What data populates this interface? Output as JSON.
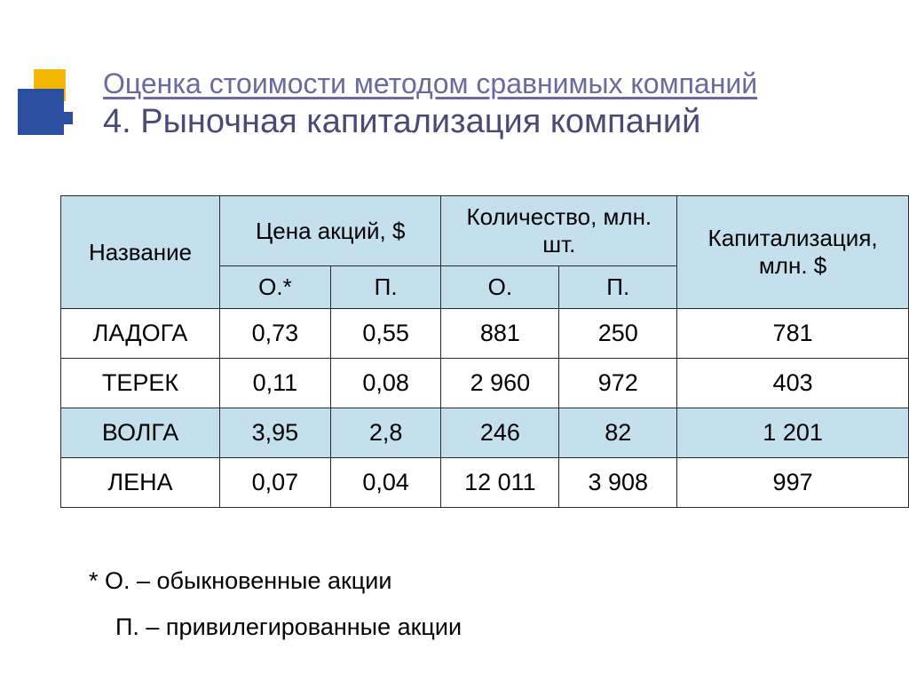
{
  "colors": {
    "page_bg": "#ffffff",
    "title_accent": "#6a6aa3",
    "title_main": "#4a4a78",
    "header_bg": "#c3e0ec",
    "row_bg": "#ffffff",
    "row_highlight_bg": "#c3e0ec",
    "border": "#2b2b2b",
    "orn_yellow": "#f2b705",
    "orn_blue": "#2b4ea0"
  },
  "title": {
    "line1": "Оценка стоимости методом сравнимых компаний",
    "line2": "4. Рыночная капитализация компаний"
  },
  "table": {
    "columns": {
      "name": "Название",
      "price_group": "Цена акций, $",
      "qty_group": "Количество, млн. шт.",
      "cap": "Капитализация, млн. $",
      "price_o": "О.*",
      "price_p": "П.",
      "qty_o": "О.",
      "qty_p": "П."
    },
    "rows": [
      {
        "name": "ЛАДОГА",
        "price_o": "0,73",
        "price_p": "0,55",
        "qty_o": "881",
        "qty_p": "250",
        "cap": "781",
        "hl": false
      },
      {
        "name": "ТЕРЕК",
        "price_o": "0,11",
        "price_p": "0,08",
        "qty_o": "2 960",
        "qty_p": "972",
        "cap": "403",
        "hl": false
      },
      {
        "name": "ВОЛГА",
        "price_o": "3,95",
        "price_p": "2,8",
        "qty_o": "246",
        "qty_p": "82",
        "cap": "1 201",
        "hl": true
      },
      {
        "name": "ЛЕНА",
        "price_o": "0,07",
        "price_p": "0,04",
        "qty_o": "12 011",
        "qty_p": "3 908",
        "cap": "997",
        "hl": false
      }
    ]
  },
  "footnotes": {
    "o": "* О. – обыкновенные акции",
    "p": "П. – привилегированные акции"
  }
}
